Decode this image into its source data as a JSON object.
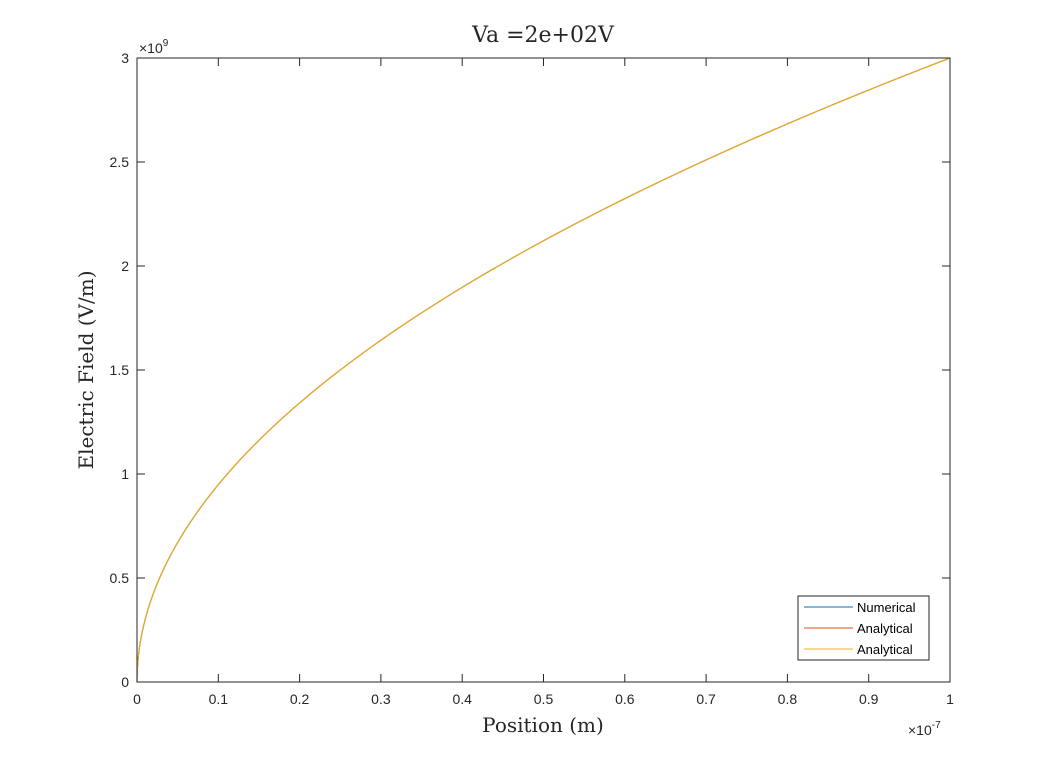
{
  "chart_data": {
    "type": "line",
    "title": "Va =2e+02V",
    "xlabel": "Position (m)",
    "ylabel": "Electric Field (V/m)",
    "x_multiplier": "×10",
    "x_exponent": "-7",
    "y_multiplier": "×10",
    "y_exponent": "9",
    "xlim": [
      0,
      1e-07
    ],
    "ylim": [
      0,
      3000000000.0
    ],
    "x_ticks": [
      0,
      0.1,
      0.2,
      0.3,
      0.4,
      0.5,
      0.6,
      0.7,
      0.8,
      0.9,
      1
    ],
    "x_tick_labels": [
      "0",
      "0.1",
      "0.2",
      "0.3",
      "0.4",
      "0.5",
      "0.6",
      "0.7",
      "0.8",
      "0.9",
      "1"
    ],
    "y_ticks": [
      0,
      0.5,
      1,
      1.5,
      2,
      2.5,
      3
    ],
    "y_tick_labels": [
      "0",
      "0.5",
      "1",
      "1.5",
      "2",
      "2.5",
      "3"
    ],
    "x": [
      0,
      1e-09,
      2e-09,
      5e-09,
      1e-08,
      2e-08,
      3e-08,
      4e-08,
      5e-08,
      6e-08,
      7e-08,
      8e-08,
      9e-08,
      1e-07
    ],
    "series": [
      {
        "name": "Numerical",
        "color": "#0072bd",
        "values": [
          0,
          300000000.0,
          424000000.0,
          671000000.0,
          949000000.0,
          1342000000.0,
          1643000000.0,
          1897000000.0,
          2121000000.0,
          2324000000.0,
          2510000000.0,
          2683000000.0,
          2846000000.0,
          3000000000.0
        ]
      },
      {
        "name": "Analytical",
        "color": "#d95319",
        "values": [
          0,
          300000000.0,
          424000000.0,
          671000000.0,
          949000000.0,
          1342000000.0,
          1643000000.0,
          1897000000.0,
          2121000000.0,
          2324000000.0,
          2510000000.0,
          2683000000.0,
          2846000000.0,
          3000000000.0
        ]
      },
      {
        "name": "Analytical",
        "color": "#edb120",
        "values": [
          0,
          300000000.0,
          424000000.0,
          671000000.0,
          949000000.0,
          1342000000.0,
          1643000000.0,
          1897000000.0,
          2121000000.0,
          2324000000.0,
          2510000000.0,
          2683000000.0,
          2846000000.0,
          3000000000.0
        ]
      }
    ],
    "grid": false,
    "legend_position": "bottom-right"
  }
}
